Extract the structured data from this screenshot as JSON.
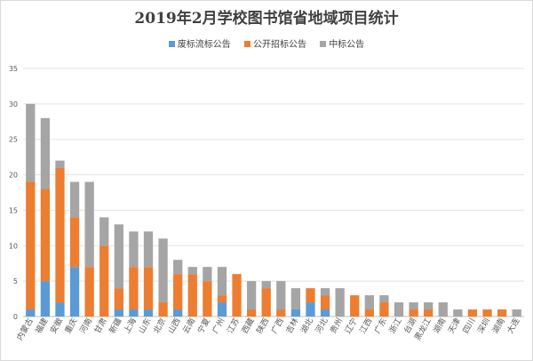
{
  "chart_data": {
    "type": "bar",
    "stacked": true,
    "title": "2019年2月学校图书馆省地域项目统计",
    "legend_position": "top",
    "grid": true,
    "ylim": [
      0,
      35
    ],
    "yticks": [
      0,
      5,
      10,
      15,
      20,
      25,
      30,
      35
    ],
    "categories": [
      "内蒙古",
      "福建",
      "安徽",
      "重庆",
      "河南",
      "甘肃",
      "新疆",
      "上海",
      "山东",
      "北京",
      "山西",
      "云南",
      "宁夏",
      "广州",
      "江苏",
      "西藏",
      "陕西",
      "广西",
      "吉林",
      "湖北",
      "河北",
      "贵州",
      "辽宁",
      "江西",
      "广东",
      "浙江",
      "台湖",
      "黑龙江",
      "湖南",
      "天津",
      "四川",
      "深圳",
      "湖南",
      "大连"
    ],
    "series": [
      {
        "name": "废标流标公告",
        "color": "#5b9bd5",
        "values": [
          1,
          5,
          2,
          7,
          0,
          0,
          1,
          1,
          1,
          0,
          1,
          0,
          0,
          2,
          0,
          0,
          0,
          0,
          1,
          2,
          1,
          0,
          0,
          0,
          0,
          0,
          0,
          0,
          0,
          0,
          0,
          0,
          0,
          0
        ]
      },
      {
        "name": "公开招标公告",
        "color": "#ed7d31",
        "values": [
          18,
          13,
          19,
          7,
          7,
          10,
          3,
          6,
          6,
          2,
          5,
          6,
          5,
          1,
          6,
          1,
          4,
          1,
          0,
          2,
          2,
          0,
          3,
          1,
          2,
          0,
          1,
          1,
          0,
          0,
          1,
          1,
          1,
          0
        ]
      },
      {
        "name": "中标公告",
        "color": "#a5a5a5",
        "values": [
          11,
          10,
          1,
          5,
          12,
          4,
          9,
          5,
          5,
          9,
          2,
          1,
          2,
          4,
          0,
          4,
          1,
          4,
          3,
          0,
          1,
          4,
          0,
          2,
          1,
          2,
          1,
          1,
          2,
          1,
          0,
          0,
          0,
          1
        ]
      }
    ]
  }
}
